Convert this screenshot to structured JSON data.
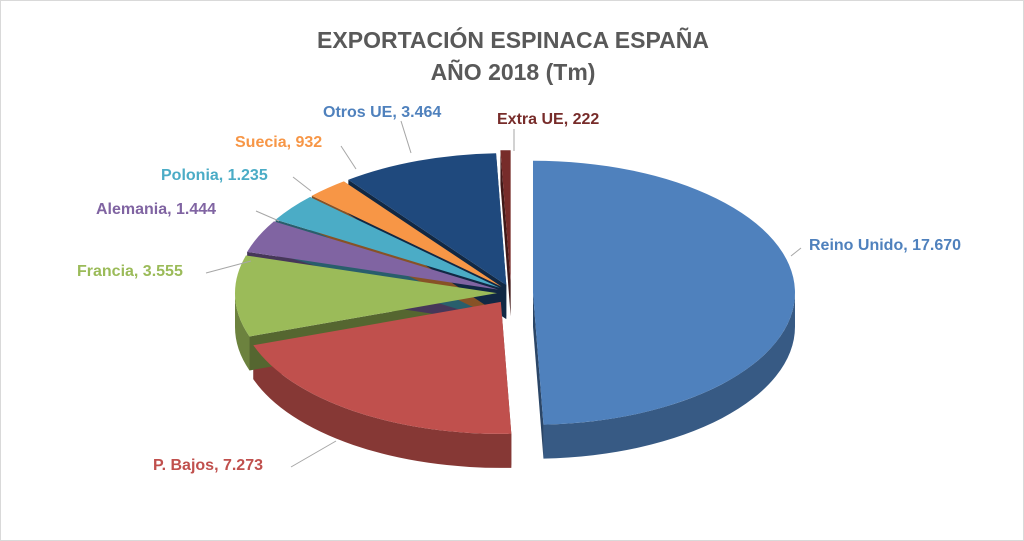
{
  "chart_data": {
    "type": "pie",
    "variant": "3d-exploded",
    "title": "EXPORTACIÓN ESPINACA ESPAÑA",
    "subtitle": "AÑO 2018 (Tm)",
    "slices": [
      {
        "name": "Reino Unido",
        "value": 17670,
        "label": "Reino Unido, 17.670",
        "color": "#4f81bd"
      },
      {
        "name": "P. Bajos",
        "value": 7273,
        "label": "P. Bajos, 7.273",
        "color": "#c0504d"
      },
      {
        "name": "Francia",
        "value": 3555,
        "label": "Francia, 3.555",
        "color": "#9bbb59"
      },
      {
        "name": "Alemania",
        "value": 1444,
        "label": "Alemania, 1.444",
        "color": "#8064a2"
      },
      {
        "name": "Polonia",
        "value": 1235,
        "label": "Polonia, 1.235",
        "color": "#4bacc6"
      },
      {
        "name": "Suecia",
        "value": 932,
        "label": "Suecia, 932",
        "color": "#f79646"
      },
      {
        "name": "Otros UE",
        "value": 3464,
        "label": "Otros UE, 3.464",
        "color": "#1f497d"
      },
      {
        "name": "Extra UE",
        "value": 222,
        "label": "Extra UE, 222",
        "color": "#772c2a"
      }
    ]
  }
}
